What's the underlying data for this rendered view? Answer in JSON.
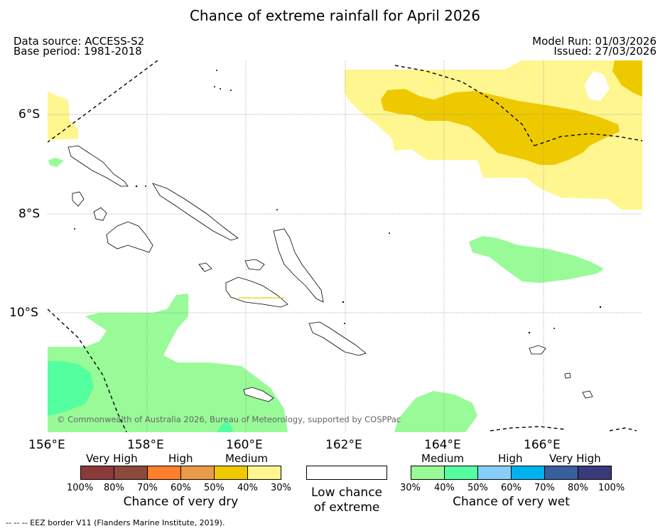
{
  "title": "Chance of extreme rainfall for April 2026",
  "meta": {
    "data_source": "Data source: ACCESS-S2",
    "base_period": "Base period: 1981-2018",
    "model_run": "Model Run: 01/03/2026",
    "issued": "Issued: 27/03/2026"
  },
  "axes": {
    "x_ticks": [
      "156°E",
      "158°E",
      "160°E",
      "162°E",
      "164°E",
      "166°E"
    ],
    "y_ticks": [
      "6°S",
      "8°S",
      "10°S"
    ]
  },
  "attribution": "© Commonwealth of Australia 2026, Bureau of Meteorology, supported by COSPPac",
  "legend": {
    "dry": {
      "categories": [
        "Very High",
        "High",
        "Medium"
      ],
      "labels": [
        "100%",
        "80%",
        "70%",
        "60%",
        "50%",
        "40%",
        "30%"
      ],
      "colors": [
        "#8b3a3a",
        "#8b4a3a",
        "#ff7f2a",
        "#eb9a4a",
        "#eec900",
        "#fff68f"
      ],
      "caption": "Chance of very dry"
    },
    "neutral": {
      "caption_line1": "Low chance",
      "caption_line2": "of extreme",
      "color": "#ffffff"
    },
    "wet": {
      "categories": [
        "Medium",
        "High",
        "Very High"
      ],
      "labels": [
        "30%",
        "40%",
        "50%",
        "60%",
        "70%",
        "80%",
        "100%"
      ],
      "colors": [
        "#98fb98",
        "#54ff9f",
        "#87cefa",
        "#00b2ee",
        "#3a5f9f",
        "#3a3a7a"
      ],
      "caption": "Chance of very wet"
    }
  },
  "footnote": "--  --  -- EEZ border V11 (Flanders Marine Institute, 2019).",
  "colors": {
    "medium_dry": "#fff68f",
    "high_dry": "#eec900",
    "medium_wet": "#98fb98",
    "high_wet": "#54ff9f",
    "land_outline": "#000000"
  }
}
